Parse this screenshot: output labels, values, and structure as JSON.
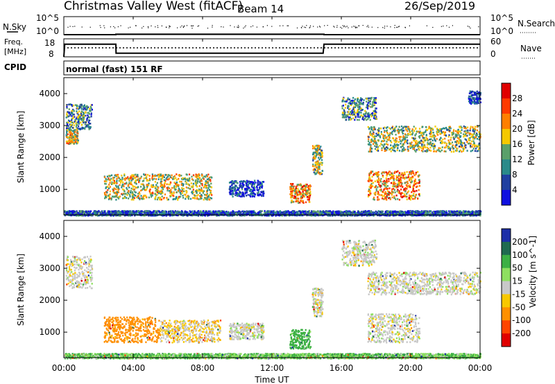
{
  "header": {
    "station": "Christmas Valley West (fitACF)",
    "beam": "Beam 14",
    "date": "26/Sep/2019"
  },
  "noise_panel": {
    "left_label": "N.Sky",
    "right_label": "N.Search",
    "left_ticks": [
      "10^5",
      "10^0"
    ],
    "right_ticks": [
      "10^5",
      "10^0"
    ]
  },
  "freq_panel": {
    "left_label_1": "Freq.",
    "left_label_2": "[MHz]",
    "left_ticks": [
      "18",
      "8"
    ],
    "right_label": "Nave",
    "right_ticks": [
      "60",
      "0"
    ]
  },
  "cpid": {
    "label": "CPID",
    "value": "normal (fast) 151 RF"
  },
  "power_panel": {
    "ylabel": "Slant Range [km]",
    "colorbar_label": "Power [dB]",
    "colorbar_ticks": [
      "28",
      "24",
      "20",
      "16",
      "12",
      "8",
      "4"
    ],
    "colorbar_colors": [
      "#e00000",
      "#ff3a00",
      "#ff7f00",
      "#f5c800",
      "#5aa06a",
      "#2a8a8a",
      "#2040a0",
      "#1010e0"
    ]
  },
  "velocity_panel": {
    "ylabel": "Slant Range [km]",
    "colorbar_label": "Velocity [m s^-1]",
    "colorbar_ticks": [
      "200",
      "100",
      "50",
      "15",
      "-15",
      "-50",
      "-100",
      "-200"
    ],
    "colorbar_colors": [
      "#1c2ea8",
      "#1f6a50",
      "#3cb044",
      "#8ee060",
      "#c8c8c8",
      "#f8c800",
      "#ff9000",
      "#ff4500",
      "#e00000"
    ]
  },
  "xaxis": {
    "label": "Time UT",
    "ticks": [
      "00:00",
      "04:00",
      "08:00",
      "12:00",
      "16:00",
      "20:00",
      "00:00"
    ]
  },
  "chart_data": [
    {
      "type": "line",
      "title": "N.Sky / N.Search",
      "x": [
        0,
        0.1,
        3,
        15,
        24
      ],
      "series": [
        {
          "name": "N.Sky",
          "values": [
            0.6,
            1.0,
            1.3,
            1.0,
            1.0
          ]
        }
      ],
      "yscale": "log",
      "ylim": [
        1,
        100000
      ]
    },
    {
      "type": "line",
      "title": "Freq. / Nave",
      "x": [
        0,
        0.05,
        3,
        3.01,
        14.95,
        15,
        24
      ],
      "series": [
        {
          "name": "Freq.",
          "values": [
            8,
            15,
            15,
            10,
            10,
            15,
            15
          ]
        },
        {
          "name": "Nave",
          "values": [
            30,
            30,
            30,
            30,
            30,
            30,
            30
          ]
        }
      ],
      "ylim": [
        8,
        18
      ],
      "y2lim": [
        0,
        60
      ]
    },
    {
      "type": "heatmap",
      "title": "Power [dB]",
      "xlabel": "Time UT",
      "ylabel": "Slant Range [km]",
      "xlim": [
        0,
        24
      ],
      "ylim": [
        200,
        4500
      ],
      "clim": [
        0,
        30
      ],
      "echo_regions": [
        {
          "t0": 0.1,
          "t1": 1.6,
          "r0": 2900,
          "r1": 3700,
          "peak": 18
        },
        {
          "t0": 0.1,
          "t1": 0.8,
          "r0": 2450,
          "r1": 2900,
          "peak": 24
        },
        {
          "t0": 2.3,
          "t1": 8.5,
          "r0": 700,
          "r1": 1500,
          "peak": 24
        },
        {
          "t0": 9.5,
          "t1": 11.5,
          "r0": 800,
          "r1": 1300,
          "peak": 12
        },
        {
          "t0": 13.0,
          "t1": 14.2,
          "r0": 600,
          "r1": 1200,
          "peak": 28
        },
        {
          "t0": 14.3,
          "t1": 14.9,
          "r0": 1500,
          "r1": 2400,
          "peak": 22
        },
        {
          "t0": 16.0,
          "t1": 18.0,
          "r0": 3200,
          "r1": 3900,
          "peak": 18
        },
        {
          "t0": 17.5,
          "t1": 24.0,
          "r0": 2200,
          "r1": 3000,
          "peak": 22
        },
        {
          "t0": 17.5,
          "t1": 20.5,
          "r0": 700,
          "r1": 1600,
          "peak": 28
        },
        {
          "t0": 23.3,
          "t1": 24.0,
          "r0": 3700,
          "r1": 4100,
          "peak": 12
        },
        {
          "t0": 0.0,
          "t1": 24.0,
          "r0": 200,
          "r1": 350,
          "peak": 14
        }
      ]
    },
    {
      "type": "heatmap",
      "title": "Velocity [m s^-1]",
      "xlabel": "Time UT",
      "ylabel": "Slant Range [km]",
      "xlim": [
        0,
        24
      ],
      "ylim": [
        200,
        4500
      ],
      "clim": [
        -200,
        200
      ],
      "echo_regions": [
        {
          "t0": 0.1,
          "t1": 1.6,
          "r0": 2400,
          "r1": 3400,
          "mean": 0
        },
        {
          "t0": 2.3,
          "t1": 5.5,
          "r0": 700,
          "r1": 1500,
          "mean": -50
        },
        {
          "t0": 5.5,
          "t1": 9.0,
          "r0": 700,
          "r1": 1400,
          "mean": -15
        },
        {
          "t0": 9.5,
          "t1": 11.5,
          "r0": 800,
          "r1": 1300,
          "mean": 0
        },
        {
          "t0": 13.0,
          "t1": 14.2,
          "r0": 500,
          "r1": 1100,
          "mean": 50
        },
        {
          "t0": 14.3,
          "t1": 14.9,
          "r0": 1500,
          "r1": 2400,
          "mean": 0
        },
        {
          "t0": 16.0,
          "t1": 18.0,
          "r0": 3100,
          "r1": 3900,
          "mean": 0
        },
        {
          "t0": 17.5,
          "t1": 24.0,
          "r0": 2200,
          "r1": 2900,
          "mean": 0
        },
        {
          "t0": 17.5,
          "t1": 20.5,
          "r0": 700,
          "r1": 1600,
          "mean": 0
        },
        {
          "t0": 0.0,
          "t1": 24.0,
          "r0": 200,
          "r1": 350,
          "mean": 30
        }
      ]
    }
  ]
}
